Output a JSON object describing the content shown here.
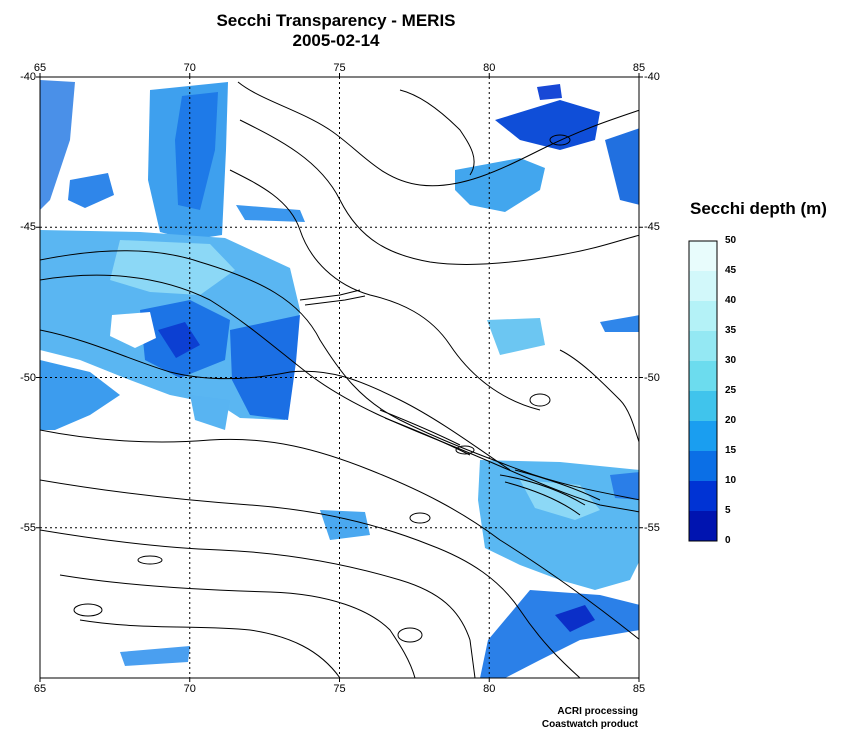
{
  "title": "Secchi Transparency - MERIS",
  "date": "2005-02-14",
  "map": {
    "lon_ticks": [
      "65",
      "70",
      "75",
      "80",
      "85"
    ],
    "lat_ticks": [
      "-40",
      "-45",
      "-50",
      "-55"
    ],
    "lon_range": [
      65,
      85
    ],
    "lat_range": [
      -40,
      -60
    ],
    "grid": "dotted"
  },
  "legend": {
    "title": "Secchi depth (m)",
    "ticks": [
      "50",
      "45",
      "40",
      "35",
      "30",
      "25",
      "20",
      "15",
      "10",
      "5",
      "0"
    ],
    "colors": [
      "#e8fcfc",
      "#d2f8fa",
      "#b4f2f7",
      "#94e8f3",
      "#6cdcee",
      "#40c4ec",
      "#1a9ef0",
      "#0b6fe6",
      "#0033d4",
      "#0014b0"
    ]
  },
  "credits": {
    "line1": "ACRI processing",
    "line2": "Coastwatch product"
  }
}
